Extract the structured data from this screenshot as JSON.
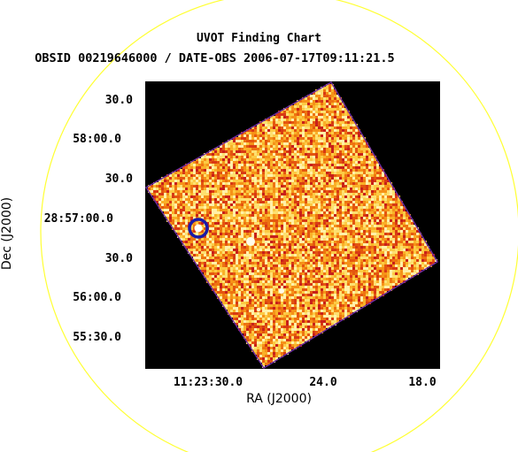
{
  "chart": {
    "title": "UVOT Finding Chart",
    "subtitle": "OBSID 00219646000 / DATE-OBS 2006-07-17T09:11:21.5",
    "xlabel": "RA (J2000)",
    "ylabel": "Dec (J2000)",
    "dec_ticks": [
      "30.0",
      "58:00.0",
      "30.0",
      "28:57:00.0",
      "30.0",
      "56:00.0",
      "55:30.0"
    ],
    "ra_ticks": [
      "11:23:30.0",
      "24.0",
      "18.0"
    ]
  },
  "colors": {
    "background": "#ffffff",
    "image_black": "#000000",
    "field_circle": "#ffff33",
    "source_ring": "#1a1aa8"
  }
}
